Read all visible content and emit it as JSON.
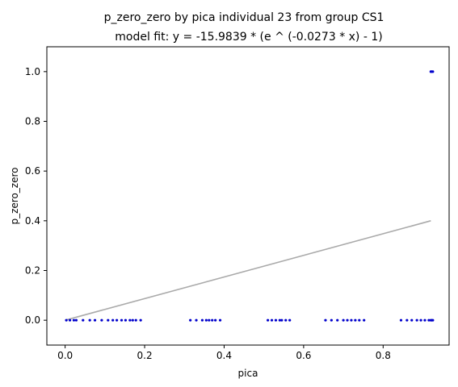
{
  "chart_data": {
    "type": "scatter",
    "title": "p_zero_zero by pica individual 23 from group CS1",
    "subtitle": "model fit: y = -15.9839 * (e ^ (-0.0273 * x) - 1)",
    "xlabel": "pica",
    "ylabel": "p_zero_zero",
    "xlim": [
      -0.046,
      0.966
    ],
    "ylim": [
      -0.1,
      1.1
    ],
    "x_ticks": [
      "0.0",
      "0.2",
      "0.4",
      "0.6",
      "0.8"
    ],
    "x_tick_values": [
      0.0,
      0.2,
      0.4,
      0.6,
      0.8
    ],
    "y_ticks": [
      "0.0",
      "0.2",
      "0.4",
      "0.6",
      "0.8",
      "1.0"
    ],
    "y_tick_values": [
      0.0,
      0.2,
      0.4,
      0.6,
      0.8,
      1.0
    ],
    "grid": false,
    "points_color": "#0000cc",
    "fit_color": "#aaaaaa",
    "fit_line": {
      "x": [
        0.0,
        0.92
      ],
      "y": [
        0.0,
        0.4
      ]
    },
    "points": {
      "x": [
        0.003,
        0.012,
        0.022,
        0.028,
        0.045,
        0.062,
        0.075,
        0.092,
        0.108,
        0.12,
        0.13,
        0.142,
        0.152,
        0.163,
        0.17,
        0.178,
        0.19,
        0.315,
        0.33,
        0.345,
        0.355,
        0.362,
        0.37,
        0.378,
        0.39,
        0.51,
        0.52,
        0.53,
        0.54,
        0.545,
        0.555,
        0.565,
        0.655,
        0.67,
        0.685,
        0.7,
        0.71,
        0.72,
        0.73,
        0.74,
        0.752,
        0.845,
        0.86,
        0.872,
        0.885,
        0.895,
        0.905,
        0.915,
        0.92,
        0.922,
        0.925,
        0.92,
        0.922,
        0.925
      ],
      "y": [
        0,
        0,
        0,
        0,
        0,
        0,
        0,
        0,
        0,
        0,
        0,
        0,
        0,
        0,
        0,
        0,
        0,
        0,
        0,
        0,
        0,
        0,
        0,
        0,
        0,
        0,
        0,
        0,
        0,
        0,
        0,
        0,
        0,
        0,
        0,
        0,
        0,
        0,
        0,
        0,
        0,
        0,
        0,
        0,
        0,
        0,
        0,
        0,
        0,
        0,
        0,
        1,
        1,
        1
      ]
    }
  }
}
